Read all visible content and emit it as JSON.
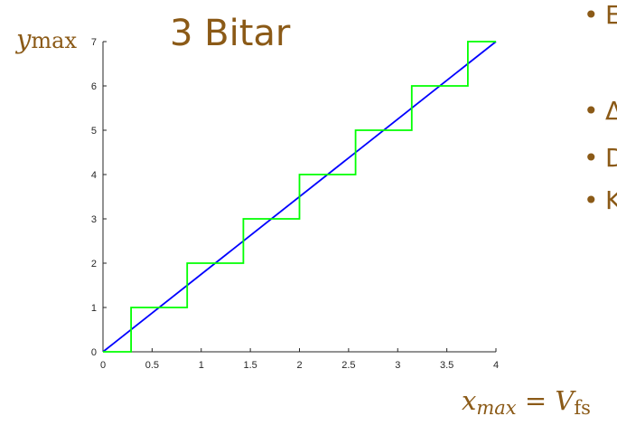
{
  "slide": {
    "title": "3 Bitar",
    "ymax_label": {
      "var": "y",
      "sub": "max"
    },
    "xmax_label": {
      "var": "x",
      "sub": "max",
      "eq": "=",
      "rhs_var": "V",
      "rhs_sub": "fs"
    },
    "bullets": [
      "E",
      "Δ",
      "D",
      "K"
    ],
    "accent_color": "#8b5a17"
  },
  "chart_data": {
    "type": "line",
    "xlim": [
      0,
      4
    ],
    "ylim": [
      0,
      7
    ],
    "xticks": [
      0,
      0.5,
      1,
      1.5,
      2,
      2.5,
      3,
      3.5,
      4
    ],
    "yticks": [
      0,
      1,
      2,
      3,
      4,
      5,
      6,
      7
    ],
    "xtick_labels": [
      "0",
      "0.5",
      "1",
      "1.5",
      "2",
      "2.5",
      "3",
      "3.5",
      "4"
    ],
    "ytick_labels": [
      "0",
      "1",
      "2",
      "3",
      "4",
      "5",
      "6",
      "7"
    ],
    "grid": false,
    "series": [
      {
        "color": "#0000ff",
        "style": "line",
        "x": [
          0,
          4
        ],
        "y": [
          0,
          7
        ]
      },
      {
        "color": "#00ff00",
        "style": "step",
        "x": [
          0,
          0.286,
          0.286,
          0.857,
          0.857,
          1.429,
          1.429,
          2.0,
          2.0,
          2.571,
          2.571,
          3.143,
          3.143,
          3.714,
          3.714,
          4.0
        ],
        "y": [
          0,
          0,
          1,
          1,
          2,
          2,
          3,
          3,
          4,
          4,
          5,
          5,
          6,
          6,
          7,
          7
        ]
      }
    ]
  }
}
